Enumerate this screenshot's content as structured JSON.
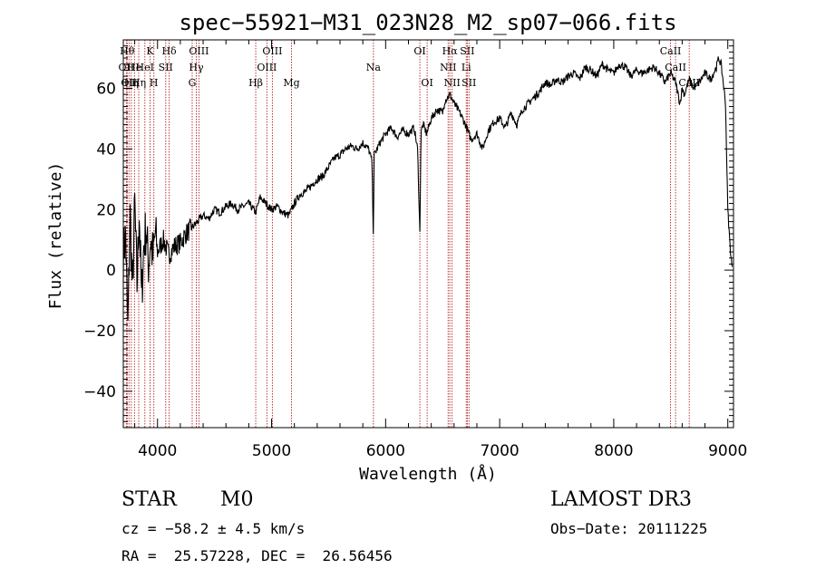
{
  "chart_data": {
    "type": "line",
    "title": "spec−55921−M31_023N28_M2_sp07−066.fits",
    "xlabel": "Wavelength (Å)",
    "ylabel": "Flux (relative)",
    "xlim": [
      3700,
      9050
    ],
    "ylim": [
      -52,
      76
    ],
    "xticks": [
      4000,
      5000,
      6000,
      7000,
      8000,
      9000
    ],
    "yticks": [
      -40,
      -20,
      0,
      20,
      40,
      60
    ],
    "ytick_labels": [
      "−40",
      "−20",
      "0",
      "20",
      "40",
      "60"
    ],
    "line_color": "#000000",
    "marker_color": "#b22222",
    "series": [
      {
        "name": "flux",
        "x": [
          3700,
          3720,
          3740,
          3760,
          3780,
          3800,
          3820,
          3840,
          3860,
          3880,
          3900,
          3920,
          3940,
          3960,
          3980,
          4000,
          4050,
          4100,
          4150,
          4200,
          4250,
          4300,
          4350,
          4400,
          4450,
          4500,
          4550,
          4600,
          4650,
          4700,
          4750,
          4800,
          4861,
          4900,
          4950,
          5000,
          5050,
          5100,
          5150,
          5200,
          5250,
          5300,
          5350,
          5400,
          5450,
          5500,
          5550,
          5600,
          5650,
          5700,
          5750,
          5800,
          5850,
          5880,
          5893,
          5900,
          5950,
          6000,
          6050,
          6100,
          6150,
          6200,
          6250,
          6280,
          6300,
          6310,
          6330,
          6360,
          6400,
          6450,
          6500,
          6520,
          6563,
          6600,
          6650,
          6700,
          6750,
          6800,
          6850,
          6900,
          6950,
          7000,
          7050,
          7100,
          7150,
          7200,
          7250,
          7300,
          7350,
          7400,
          7450,
          7500,
          7550,
          7600,
          7650,
          7700,
          7750,
          7800,
          7850,
          7900,
          7950,
          8000,
          8050,
          8100,
          8150,
          8200,
          8250,
          8300,
          8350,
          8400,
          8450,
          8498,
          8542,
          8580,
          8600,
          8620,
          8662,
          8700,
          8750,
          8800,
          8850,
          8900,
          8920,
          8940,
          8960,
          8980,
          9000,
          9020,
          9040
        ],
        "y": [
          5,
          12,
          -20,
          18,
          -8,
          22,
          -5,
          20,
          -10,
          8,
          14,
          2,
          10,
          4,
          12,
          6,
          10,
          5,
          8,
          9,
          12,
          14,
          16,
          18,
          17,
          20,
          19,
          21,
          22,
          20,
          21,
          22,
          19,
          24,
          22,
          20,
          21,
          19,
          18,
          22,
          25,
          26,
          28,
          30,
          31,
          34,
          37,
          38,
          40,
          41,
          40,
          42,
          40,
          36,
          11,
          38,
          42,
          45,
          47,
          44,
          46,
          45,
          47,
          40,
          12,
          46,
          48,
          45,
          50,
          53,
          52,
          56,
          58,
          55,
          52,
          48,
          43,
          45,
          40,
          46,
          49,
          50,
          47,
          52,
          48,
          53,
          55,
          57,
          59,
          62,
          61,
          63,
          62,
          64,
          65,
          63,
          67,
          66,
          64,
          68,
          66,
          65,
          68,
          67,
          64,
          66,
          65,
          66,
          67,
          65,
          62,
          65,
          62,
          55,
          60,
          58,
          63,
          60,
          62,
          65,
          63,
          67,
          70,
          68,
          62,
          55,
          20,
          8,
          0
        ]
      }
    ],
    "lines": [
      {
        "wave": 3734,
        "label": "Hθ",
        "row": 1
      },
      {
        "wave": 3727,
        "label": "OII",
        "row": 2
      },
      {
        "wave": 3750,
        "label": "OII",
        "row": 3
      },
      {
        "wave": 3770,
        "label": "Hη",
        "row": 3
      },
      {
        "wave": 3798,
        "label": "He",
        "row": 2
      },
      {
        "wave": 3835,
        "label": "Hη",
        "row": 3
      },
      {
        "wave": 3889,
        "label": "HeI",
        "row": 2
      },
      {
        "wave": 3934,
        "label": "K",
        "row": 1
      },
      {
        "wave": 3968,
        "label": "H",
        "row": 3
      },
      {
        "wave": 4072,
        "label": "SII",
        "row": 2
      },
      {
        "wave": 4102,
        "label": "Hδ",
        "row": 1
      },
      {
        "wave": 4304,
        "label": "G",
        "row": 3
      },
      {
        "wave": 4340,
        "label": "Hγ",
        "row": 2
      },
      {
        "wave": 4363,
        "label": "OIII",
        "row": 1
      },
      {
        "wave": 4861,
        "label": "Hβ",
        "row": 3
      },
      {
        "wave": 4959,
        "label": "OIII",
        "row": 2
      },
      {
        "wave": 5007,
        "label": "OIII",
        "row": 1
      },
      {
        "wave": 5175,
        "label": "Mg",
        "row": 3
      },
      {
        "wave": 5893,
        "label": "Na",
        "row": 2
      },
      {
        "wave": 6300,
        "label": "OI",
        "row": 1
      },
      {
        "wave": 6364,
        "label": "OI",
        "row": 3
      },
      {
        "wave": 6548,
        "label": "NII",
        "row": 2
      },
      {
        "wave": 6563,
        "label": "Hα",
        "row": 1
      },
      {
        "wave": 6583,
        "label": "NII",
        "row": 3
      },
      {
        "wave": 6707,
        "label": "Li",
        "row": 2
      },
      {
        "wave": 6716,
        "label": "SII",
        "row": 1
      },
      {
        "wave": 6731,
        "label": "SII",
        "row": 3
      },
      {
        "wave": 8498,
        "label": "CaII",
        "row": 1
      },
      {
        "wave": 8542,
        "label": "CaII",
        "row": 2
      },
      {
        "wave": 8662,
        "label": "CaII",
        "row": 3
      }
    ]
  },
  "info": {
    "object_class": "STAR",
    "subclass": "M0",
    "survey": "LAMOST DR3",
    "cz": "cz = −58.2 ± 4.5 km/s",
    "obs_date": "Obs−Date: 20111225",
    "coords": "RA =  25.57228, DEC =  26.56456"
  }
}
